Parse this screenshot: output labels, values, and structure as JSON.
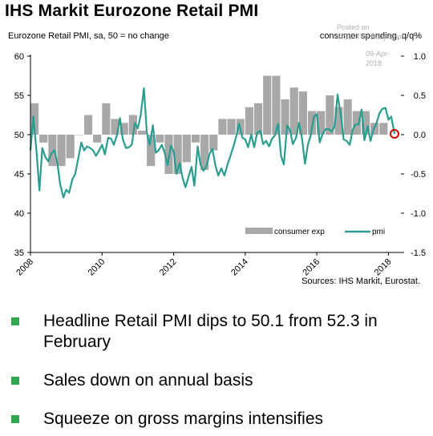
{
  "title": "IHS Markit Eurozone Retail PMI",
  "subtitle": "Eurozone Retail PMI, sa, 50 = no change",
  "right_axis_label": "consumer spending, q/q%",
  "watermark": {
    "line1": "Posted on",
    "line2": "WSJ: The Daily Shot",
    "line3": "09-Apr-2018"
  },
  "source": "Sources: IHS Markit, Eurostat.",
  "bullets": [
    "Headline Retail PMI dips to 50.1 from 52.3 in February",
    "Sales down on annual basis",
    "Squeeze on gross margins intensifies"
  ],
  "colors": {
    "pmi_line": "#2a9d8f",
    "bars": "#a8a8a8",
    "bullet": "#2fa84f",
    "highlight": "#cc0000"
  },
  "chart_data": {
    "type": "line",
    "xlim": [
      2008,
      2018.35
    ],
    "x_ticks": [
      "2008",
      "2010",
      "2012",
      "2014",
      "2016",
      "2018"
    ],
    "left_axis": {
      "ylim": [
        35,
        60
      ],
      "ticks": [
        "35",
        "40",
        "45",
        "50",
        "55",
        "60"
      ]
    },
    "right_axis": {
      "ylim": [
        -1.5,
        1.0
      ],
      "ticks": [
        "-1.5",
        "-1.0",
        "-0.5",
        "0.0",
        "0.5",
        "1.0"
      ]
    },
    "grid": false,
    "legend": {
      "position": "bottom-right",
      "labels": [
        "consumer exp",
        "pmi"
      ]
    },
    "series": [
      {
        "name": "consumer exp",
        "type": "bar",
        "axis": "right",
        "x": [
          2008.0,
          2008.25,
          2008.5,
          2008.75,
          2009.0,
          2009.25,
          2009.5,
          2009.75,
          2010.0,
          2010.25,
          2010.5,
          2010.75,
          2011.0,
          2011.25,
          2011.5,
          2011.75,
          2012.0,
          2012.25,
          2012.5,
          2012.75,
          2013.0,
          2013.25,
          2013.5,
          2013.75,
          2014.0,
          2014.25,
          2014.5,
          2014.75,
          2015.0,
          2015.25,
          2015.5,
          2015.75,
          2016.0,
          2016.25,
          2016.5,
          2016.75,
          2017.0,
          2017.25,
          2017.5,
          2017.75
        ],
        "values": [
          0.4,
          -0.1,
          -0.4,
          -0.4,
          -0.3,
          0.0,
          0.25,
          -0.1,
          0.4,
          0.2,
          0.15,
          0.25,
          0.05,
          -0.4,
          -0.1,
          -0.5,
          -0.5,
          -0.35,
          -0.1,
          -0.45,
          -0.2,
          0.2,
          0.2,
          0.2,
          0.35,
          0.4,
          0.75,
          0.75,
          0.45,
          0.6,
          0.55,
          0.3,
          0.3,
          0.5,
          0.35,
          0.45,
          0.3,
          0.3,
          0.15,
          0.15
        ]
      },
      {
        "name": "pmi",
        "type": "line",
        "axis": "left",
        "x": [
          2008.0,
          2008.08,
          2008.17,
          2008.25,
          2008.33,
          2008.42,
          2008.5,
          2008.58,
          2008.67,
          2008.75,
          2008.83,
          2008.92,
          2009.0,
          2009.08,
          2009.17,
          2009.25,
          2009.33,
          2009.42,
          2009.5,
          2009.58,
          2009.67,
          2009.75,
          2009.83,
          2009.92,
          2010.0,
          2010.08,
          2010.17,
          2010.25,
          2010.33,
          2010.42,
          2010.5,
          2010.58,
          2010.67,
          2010.75,
          2010.83,
          2010.92,
          2011.0,
          2011.08,
          2011.17,
          2011.25,
          2011.33,
          2011.42,
          2011.5,
          2011.58,
          2011.67,
          2011.75,
          2011.83,
          2011.92,
          2012.0,
          2012.08,
          2012.17,
          2012.25,
          2012.33,
          2012.42,
          2012.5,
          2012.58,
          2012.67,
          2012.75,
          2012.83,
          2012.92,
          2013.0,
          2013.08,
          2013.17,
          2013.25,
          2013.33,
          2013.42,
          2013.5,
          2013.58,
          2013.67,
          2013.75,
          2013.83,
          2013.92,
          2014.0,
          2014.08,
          2014.17,
          2014.25,
          2014.33,
          2014.42,
          2014.5,
          2014.58,
          2014.67,
          2014.75,
          2014.83,
          2014.92,
          2015.0,
          2015.08,
          2015.17,
          2015.25,
          2015.33,
          2015.42,
          2015.5,
          2015.58,
          2015.67,
          2015.75,
          2015.83,
          2015.92,
          2016.0,
          2016.08,
          2016.17,
          2016.25,
          2016.33,
          2016.42,
          2016.5,
          2016.58,
          2016.67,
          2016.75,
          2016.83,
          2016.92,
          2017.0,
          2017.08,
          2017.17,
          2017.25,
          2017.33,
          2017.42,
          2017.5,
          2017.58,
          2017.67,
          2017.75,
          2017.83,
          2017.92,
          2018.0,
          2018.08,
          2018.17
        ],
        "values": [
          48.0,
          52.3,
          47.8,
          42.9,
          48.3,
          47.1,
          46.6,
          47.6,
          48.0,
          46.4,
          43.7,
          42.0,
          43.0,
          42.6,
          44.3,
          45.0,
          46.9,
          49.0,
          48.0,
          48.5,
          48.3,
          48.0,
          47.3,
          48.0,
          48.7,
          47.5,
          49.6,
          49.5,
          48.7,
          50.0,
          52.1,
          49.4,
          48.3,
          48.4,
          48.7,
          51.5,
          50.8,
          52.5,
          55.9,
          50.3,
          48.7,
          51.2,
          47.7,
          48.0,
          48.7,
          47.7,
          46.1,
          48.6,
          47.9,
          45.0,
          46.4,
          44.5,
          43.3,
          44.7,
          45.9,
          43.5,
          48.5,
          46.2,
          45.4,
          46.0,
          47.5,
          48.2,
          46.0,
          44.8,
          45.7,
          44.8,
          46.1,
          47.2,
          48.5,
          49.8,
          51.4,
          49.6,
          49.4,
          48.4,
          50.0,
          48.4,
          50.2,
          50.5,
          48.8,
          49.2,
          48.5,
          49.5,
          49.9,
          51.4,
          47.3,
          46.2,
          51.2,
          50.6,
          48.8,
          49.6,
          51.5,
          49.7,
          46.3,
          48.7,
          49.9,
          52.3,
          52.6,
          49.0,
          50.2,
          50.7,
          50.7,
          50.4,
          51.1,
          55.1,
          52.5,
          49.4,
          49.2,
          48.7,
          50.6,
          51.3,
          51.3,
          53.2,
          49.3,
          51.1,
          49.2,
          50.6,
          51.5,
          52.7,
          53.3,
          53.4,
          51.9,
          52.3,
          50.1
        ]
      }
    ]
  }
}
